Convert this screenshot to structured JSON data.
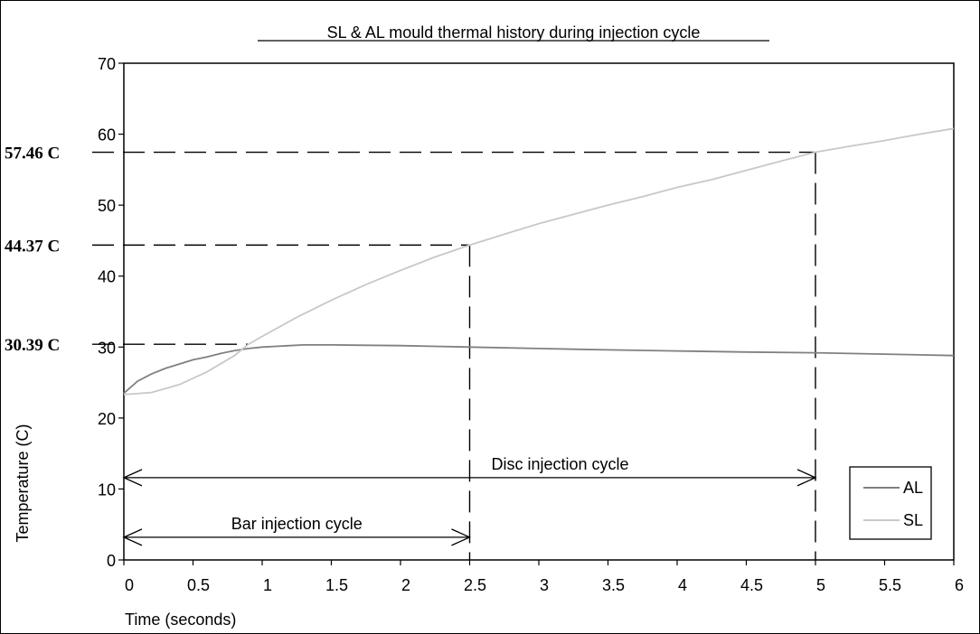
{
  "chart_data": {
    "type": "line",
    "title": "SL & AL mould thermal history during injection cycle",
    "xlabel": "Time (seconds)",
    "ylabel": "Temperature (C)",
    "xlim": [
      0,
      6
    ],
    "ylim": [
      0,
      70
    ],
    "x_ticks": [
      0,
      0.5,
      1,
      1.5,
      2,
      2.5,
      3,
      3.5,
      4,
      4.5,
      5,
      5.5,
      6
    ],
    "x_tick_labels": [
      "0",
      "0.5",
      "1",
      "1.5",
      "2",
      "2.5",
      "3",
      "3.5",
      "4",
      "4.5",
      "5",
      "5.5",
      "6"
    ],
    "y_ticks": [
      0,
      10,
      20,
      30,
      40,
      50,
      60,
      70
    ],
    "y_tick_labels": [
      "0",
      "10",
      "20",
      "30",
      "40",
      "50",
      "60",
      "70"
    ],
    "grid": false,
    "legend": "bottom-right",
    "series": [
      {
        "name": "AL",
        "color": "#808080",
        "points": [
          [
            0,
            23.5
          ],
          [
            0.1,
            25.2
          ],
          [
            0.2,
            26.2
          ],
          [
            0.3,
            27.0
          ],
          [
            0.4,
            27.6
          ],
          [
            0.5,
            28.2
          ],
          [
            0.6,
            28.6
          ],
          [
            0.7,
            29.1
          ],
          [
            0.8,
            29.5
          ],
          [
            0.9,
            29.8
          ],
          [
            1.0,
            30.0
          ],
          [
            1.1,
            30.1
          ],
          [
            1.2,
            30.2
          ],
          [
            1.3,
            30.3
          ],
          [
            1.5,
            30.3
          ],
          [
            1.75,
            30.25
          ],
          [
            2.0,
            30.2
          ],
          [
            2.25,
            30.1
          ],
          [
            2.5,
            30.0
          ],
          [
            3.0,
            29.8
          ],
          [
            3.5,
            29.6
          ],
          [
            4.0,
            29.45
          ],
          [
            4.5,
            29.3
          ],
          [
            5.0,
            29.2
          ],
          [
            5.5,
            29.0
          ],
          [
            6.0,
            28.8
          ]
        ]
      },
      {
        "name": "SL",
        "color": "#c8c8c8",
        "points": [
          [
            0,
            23.3
          ],
          [
            0.2,
            23.6
          ],
          [
            0.4,
            24.7
          ],
          [
            0.6,
            26.5
          ],
          [
            0.8,
            28.8
          ],
          [
            0.9,
            30.39
          ],
          [
            1.0,
            31.5
          ],
          [
            1.25,
            34.2
          ],
          [
            1.5,
            36.6
          ],
          [
            1.75,
            38.8
          ],
          [
            2.0,
            40.8
          ],
          [
            2.25,
            42.7
          ],
          [
            2.5,
            44.37
          ],
          [
            2.75,
            45.9
          ],
          [
            3.0,
            47.4
          ],
          [
            3.25,
            48.7
          ],
          [
            3.5,
            50.0
          ],
          [
            3.75,
            51.2
          ],
          [
            4.0,
            52.5
          ],
          [
            4.25,
            53.6
          ],
          [
            4.5,
            54.9
          ],
          [
            4.75,
            56.2
          ],
          [
            5.0,
            57.46
          ],
          [
            5.25,
            58.3
          ],
          [
            5.5,
            59.1
          ],
          [
            5.75,
            60.0
          ],
          [
            6.0,
            60.8
          ]
        ]
      }
    ],
    "reference_lines": [
      {
        "label": "57.46 C",
        "y": 57.46,
        "x_end": 5.0
      },
      {
        "label": "44.37 C",
        "y": 44.37,
        "x_end": 2.5
      },
      {
        "label": "30.39 C",
        "y": 30.39,
        "x_end": 0.9
      }
    ],
    "vertical_markers": [
      2.5,
      5.0
    ],
    "annotations": [
      {
        "text": "Disc injection cycle",
        "x_start": 0,
        "x_end": 5.0,
        "y": 11.6
      },
      {
        "text": "Bar injection cycle",
        "x_start": 0,
        "x_end": 2.5,
        "y": 3.2
      }
    ]
  }
}
